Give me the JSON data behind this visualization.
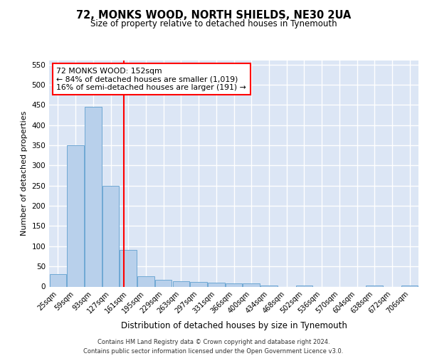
{
  "title": "72, MONKS WOOD, NORTH SHIELDS, NE30 2UA",
  "subtitle": "Size of property relative to detached houses in Tynemouth",
  "xlabel": "Distribution of detached houses by size in Tynemouth",
  "ylabel": "Number of detached properties",
  "bar_color": "#b8d0eb",
  "bar_edge_color": "#6fa8d4",
  "background_color": "#dce6f5",
  "grid_color": "#ffffff",
  "categories": [
    "25sqm",
    "59sqm",
    "93sqm",
    "127sqm",
    "161sqm",
    "195sqm",
    "229sqm",
    "263sqm",
    "297sqm",
    "331sqm",
    "366sqm",
    "400sqm",
    "434sqm",
    "468sqm",
    "502sqm",
    "536sqm",
    "570sqm",
    "604sqm",
    "638sqm",
    "672sqm",
    "706sqm"
  ],
  "values": [
    30,
    350,
    445,
    250,
    90,
    25,
    17,
    14,
    11,
    10,
    8,
    8,
    3,
    0,
    3,
    0,
    0,
    0,
    3,
    0,
    3
  ],
  "ylim": [
    0,
    560
  ],
  "yticks": [
    0,
    50,
    100,
    150,
    200,
    250,
    300,
    350,
    400,
    450,
    500,
    550
  ],
  "annotation_text": "72 MONKS WOOD: 152sqm\n← 84% of detached houses are smaller (1,019)\n16% of semi-detached houses are larger (191) →",
  "footer_line1": "Contains HM Land Registry data © Crown copyright and database right 2024.",
  "footer_line2": "Contains public sector information licensed under the Open Government Licence v3.0."
}
